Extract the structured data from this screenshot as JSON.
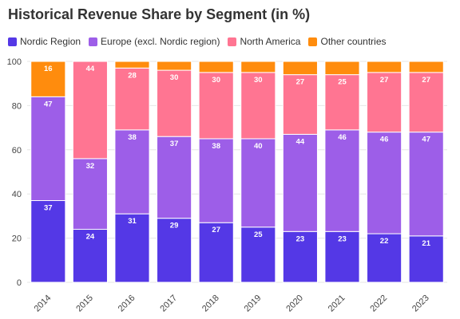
{
  "chart_data": {
    "type": "bar",
    "stacked": true,
    "title": "Historical Revenue Share by Segment (in %)",
    "xlabel": "",
    "ylabel": "",
    "ylim": [
      0,
      100
    ],
    "yticks": [
      0,
      20,
      40,
      60,
      80,
      100
    ],
    "grid": true,
    "legend": "top-left",
    "categories": [
      "2014",
      "2015",
      "2016",
      "2017",
      "2018",
      "2019",
      "2020",
      "2021",
      "2022",
      "2023"
    ],
    "series": [
      {
        "name": "Nordic Region",
        "color": "#5438e6",
        "values": [
          37,
          24,
          31,
          29,
          27,
          25,
          23,
          23,
          22,
          21
        ]
      },
      {
        "name": "Europe (excl. Nordic region)",
        "color": "#9d5ee8",
        "values": [
          47,
          32,
          38,
          37,
          38,
          40,
          44,
          46,
          46,
          47
        ]
      },
      {
        "name": "North America",
        "color": "#ff7592",
        "values": [
          0,
          44,
          28,
          30,
          30,
          30,
          27,
          25,
          27,
          27
        ]
      },
      {
        "name": "Other countries",
        "color": "#ff8c0d",
        "values": [
          16,
          0,
          3,
          4,
          5,
          5,
          6,
          6,
          5,
          5
        ]
      }
    ],
    "labels": [
      [
        "37",
        "24",
        "31",
        "29",
        "27",
        "25",
        "23",
        "23",
        "22",
        "21"
      ],
      [
        "47",
        "32",
        "38",
        "37",
        "38",
        "40",
        "44",
        "46",
        "46",
        "47"
      ],
      [
        "",
        "44",
        "28",
        "30",
        "30",
        "30",
        "27",
        "25",
        "27",
        "27"
      ],
      [
        "16",
        "",
        "",
        "",
        "",
        "",
        "",
        "",
        "",
        ""
      ]
    ],
    "label_text_colors": [
      "#ffffff",
      "#ffffff",
      "#ffffff",
      "#222222"
    ]
  }
}
